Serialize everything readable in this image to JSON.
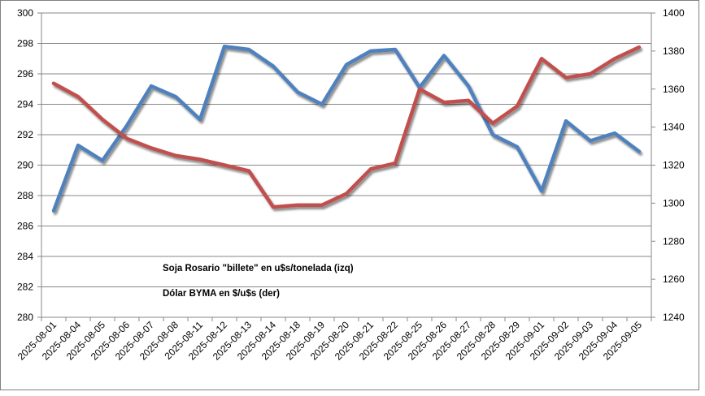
{
  "chart_data": {
    "type": "line",
    "categories": [
      "2025-08-01",
      "2025-08-04",
      "2025-08-05",
      "2025-08-06",
      "2025-08-07",
      "2025-08-08",
      "2025-08-11",
      "2025-08-12",
      "2025-08-13",
      "2025-08-14",
      "2025-08-18",
      "2025-08-19",
      "2025-08-20",
      "2025-08-21",
      "2025-08-22",
      "2025-08-25",
      "2025-08-26",
      "2025-08-27",
      "2025-08-28",
      "2025-08-29",
      "2025-09-01",
      "2025-09-02",
      "2025-09-03",
      "2025-09-04",
      "2025-09-05"
    ],
    "series": [
      {
        "name": "Soja Rosario  \"billete\" en u$s/tonelada (izq)",
        "axis": "left",
        "color": "#4F81BD",
        "values": [
          287.0,
          291.3,
          290.3,
          292.6,
          295.2,
          294.5,
          293.0,
          297.8,
          297.6,
          296.5,
          294.8,
          294.0,
          296.6,
          297.5,
          297.6,
          295.1,
          297.2,
          295.2,
          292.0,
          291.2,
          288.3,
          292.9,
          291.6,
          292.1,
          290.9
        ]
      },
      {
        "name": "Dólar BYMA en $/u$s (der)",
        "axis": "right",
        "color": "#C0504D",
        "values": [
          1363,
          1356,
          1344,
          1334,
          1329,
          1325,
          1323,
          1320,
          1317,
          1298,
          1299,
          1299,
          1305,
          1318,
          1321,
          1360,
          1353,
          1354,
          1342,
          1351,
          1376,
          1366,
          1368,
          1376,
          1382
        ]
      }
    ],
    "y_left": {
      "lim": [
        280,
        300
      ],
      "ticks": [
        280,
        282,
        284,
        286,
        288,
        290,
        292,
        294,
        296,
        298,
        300
      ]
    },
    "y_right": {
      "lim": [
        1240,
        1400
      ],
      "ticks": [
        1240,
        1260,
        1280,
        1300,
        1320,
        1340,
        1360,
        1380,
        1400
      ]
    },
    "grid": true,
    "legend_position": "lower-center-left",
    "title": "",
    "xlabel": "",
    "ylabel": ""
  }
}
